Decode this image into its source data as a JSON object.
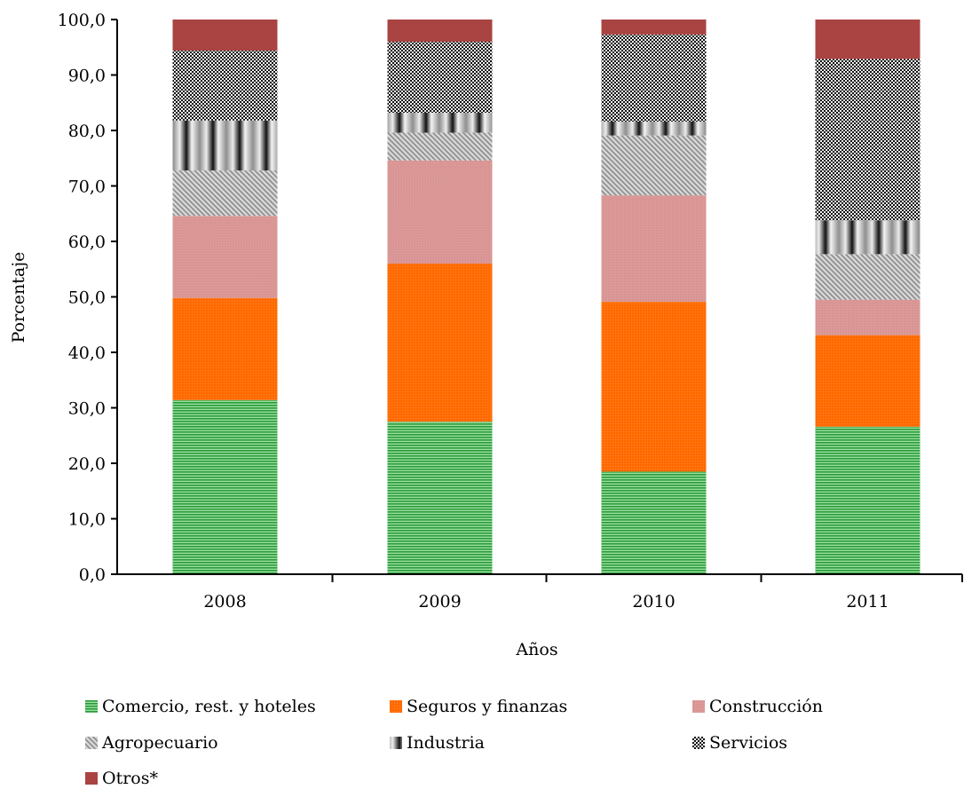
{
  "chart_data": {
    "type": "bar",
    "stacked": true,
    "categories": [
      "2008",
      "2009",
      "2010",
      "2011"
    ],
    "xlabel": "Años",
    "ylabel": "Porcentaje",
    "ylim": [
      0,
      100
    ],
    "yticks": [
      "0,0",
      "10,0",
      "20,0",
      "30,0",
      "40,0",
      "50,0",
      "60,0",
      "70,0",
      "80,0",
      "90,0",
      "100,0"
    ],
    "grid": false,
    "legend_position": "bottom",
    "series": [
      {
        "name": "Comercio, rest. y hoteles",
        "color": "#3cb54a",
        "values": [
          31.4,
          27.5,
          18.5,
          26.6
        ]
      },
      {
        "name": "Seguros y finanzas",
        "color": "#ff6a00",
        "values": [
          18.4,
          28.5,
          30.6,
          16.5
        ]
      },
      {
        "name": "Construcción",
        "color": "#d99594",
        "values": [
          14.8,
          18.6,
          19.2,
          6.4
        ]
      },
      {
        "name": "Agropecuario",
        "color": "#b0b0b0",
        "values": [
          8.2,
          5.0,
          10.8,
          8.2
        ]
      },
      {
        "name": "Industria",
        "color": "#7f7f7f",
        "values": [
          9.0,
          3.6,
          2.5,
          6.1
        ]
      },
      {
        "name": "Servicios",
        "color": "#333333",
        "values": [
          12.6,
          12.8,
          15.7,
          29.1
        ]
      },
      {
        "name": "Otros*",
        "color": "#a94442",
        "values": [
          5.6,
          4.0,
          2.7,
          7.1
        ]
      }
    ]
  }
}
